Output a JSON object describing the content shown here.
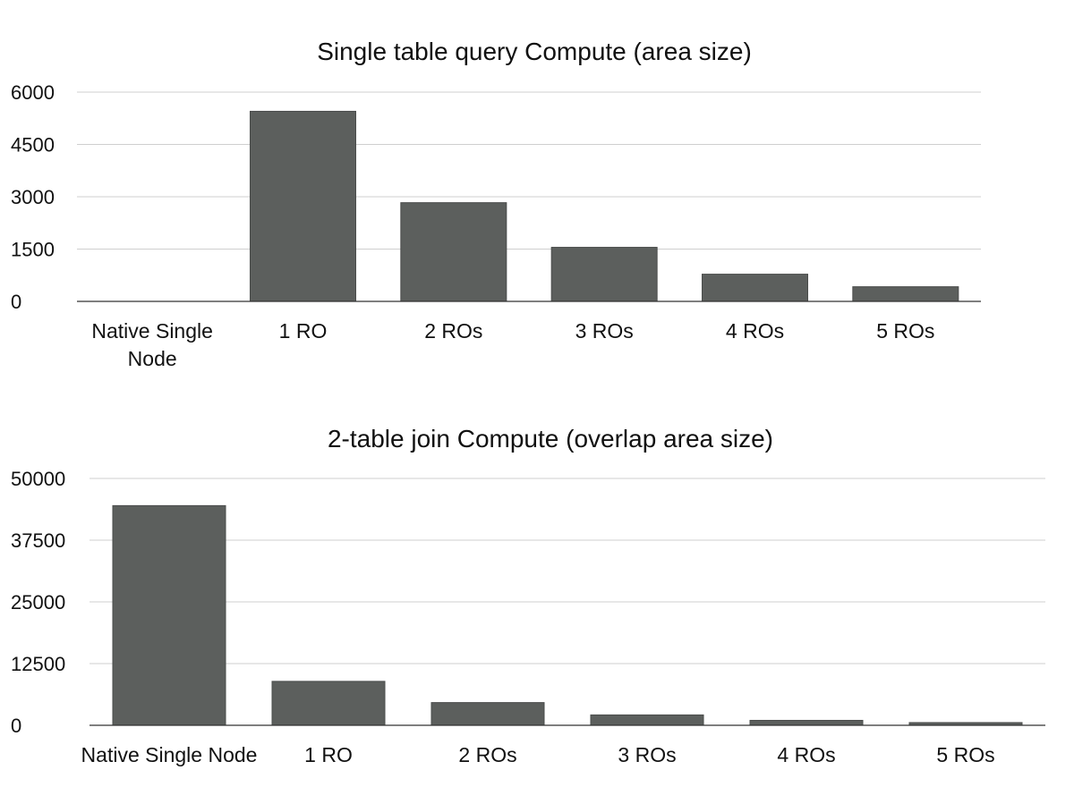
{
  "chart_data": [
    {
      "type": "bar",
      "title": "Single table query Compute (area size)",
      "xlabel": "",
      "ylabel": "",
      "ylim": [
        0,
        6000
      ],
      "yticks": [
        0,
        1500,
        3000,
        4500,
        6000
      ],
      "ytick_labels": [
        "0",
        "1500",
        "3000",
        "4500",
        "6000"
      ],
      "grid": true,
      "legend": "none",
      "bar_color": "#5c5f5d",
      "categories": [
        "Native Single Node",
        "1 RO",
        "2 ROs",
        "3 ROs",
        "4 ROs",
        "5 ROs"
      ],
      "category_label_lines": [
        [
          "Native Single",
          "Node"
        ],
        [
          "1 RO"
        ],
        [
          "2 ROs"
        ],
        [
          "3 ROs"
        ],
        [
          "4 ROs"
        ],
        [
          "5 ROs"
        ]
      ],
      "values": [
        0,
        5450,
        2830,
        1550,
        780,
        420
      ]
    },
    {
      "type": "bar",
      "title": "2-table join Compute (overlap area size)",
      "xlabel": "",
      "ylabel": "",
      "ylim": [
        0,
        50000
      ],
      "yticks": [
        0,
        12500,
        25000,
        37500,
        50000
      ],
      "ytick_labels": [
        "0",
        "12500",
        "25000",
        "37500",
        "50000"
      ],
      "grid": true,
      "legend": "none",
      "bar_color": "#5c5f5d",
      "categories": [
        "Native Single Node",
        "1 RO",
        "2 ROs",
        "3 ROs",
        "4 ROs",
        "5 ROs"
      ],
      "category_label_lines": [
        [
          "Native Single Node"
        ],
        [
          "1 RO"
        ],
        [
          "2 ROs"
        ],
        [
          "3 ROs"
        ],
        [
          "4 ROs"
        ],
        [
          "5 ROs"
        ]
      ],
      "values": [
        44500,
        8900,
        4600,
        2100,
        1000,
        550
      ]
    }
  ]
}
